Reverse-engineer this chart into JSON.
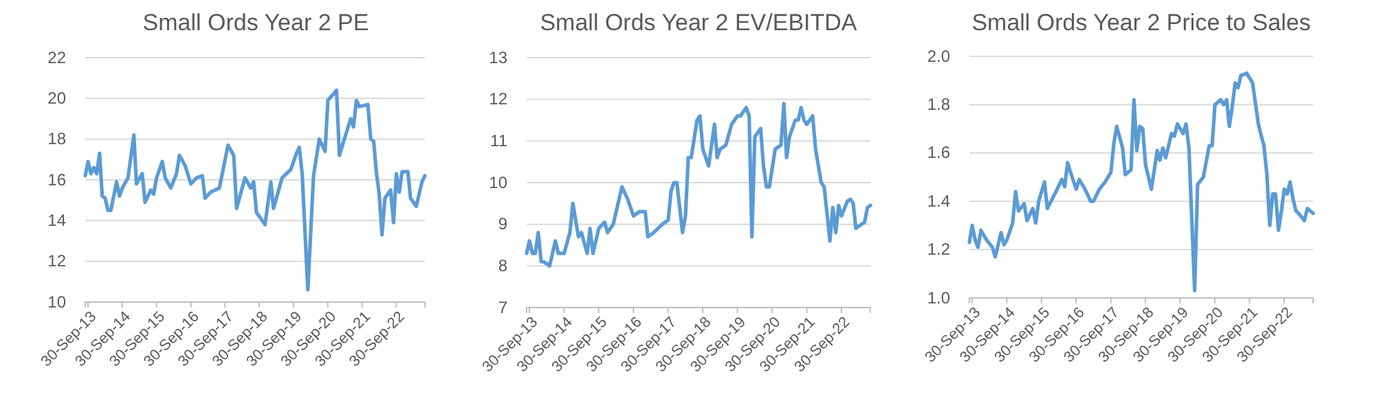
{
  "chart_data": [
    {
      "type": "line",
      "title": "Small Ords Year 2 PE",
      "color": "#5b9bd5",
      "grid": "y",
      "x": [
        "2013-09",
        "2013-10",
        "2013-11",
        "2013-12",
        "2014-01",
        "2014-02",
        "2014-03",
        "2014-04",
        "2014-05",
        "2014-06",
        "2014-08",
        "2014-09",
        "2014-10",
        "2014-12",
        "2015-02",
        "2015-03",
        "2015-05",
        "2015-06",
        "2015-08",
        "2015-09",
        "2015-10",
        "2015-12",
        "2016-01",
        "2016-03",
        "2016-05",
        "2016-06",
        "2016-08",
        "2016-10",
        "2016-12",
        "2017-02",
        "2017-03",
        "2017-05",
        "2017-08",
        "2017-11",
        "2018-01",
        "2018-02",
        "2018-05",
        "2018-07",
        "2018-08",
        "2018-09",
        "2018-12",
        "2019-02",
        "2019-03",
        "2019-04",
        "2019-06",
        "2019-09",
        "2019-11",
        "2019-12",
        "2020-01",
        "2020-03",
        "2020-05",
        "2020-07",
        "2020-09",
        "2020-10",
        "2021-01",
        "2021-02",
        "2021-04",
        "2021-06",
        "2021-07",
        "2021-08",
        "2021-09",
        "2021-12",
        "2022-01",
        "2022-02",
        "2022-03",
        "2022-04",
        "2022-05",
        "2022-06",
        "2022-08",
        "2022-09",
        "2022-10",
        "2022-11",
        "2022-12",
        "2023-02",
        "2023-03",
        "2023-05",
        "2023-07",
        "2023-08"
      ],
      "values": [
        16.2,
        16.9,
        16.3,
        16.6,
        16.3,
        17.3,
        15.2,
        15.1,
        14.5,
        14.5,
        15.9,
        15.2,
        15.6,
        16.1,
        18.2,
        15.8,
        16.3,
        14.9,
        15.5,
        15.3,
        16.1,
        16.9,
        16.1,
        15.6,
        16.3,
        17.2,
        16.7,
        15.8,
        16.1,
        16.2,
        15.1,
        15.4,
        15.6,
        17.7,
        17.2,
        14.6,
        16.1,
        15.6,
        15.9,
        14.4,
        13.8,
        15.9,
        14.6,
        15.1,
        16.1,
        16.5,
        17.3,
        17.6,
        16.3,
        10.6,
        16.2,
        18.0,
        17.4,
        19.9,
        20.4,
        17.2,
        18.1,
        19.0,
        18.6,
        19.9,
        19.6,
        19.7,
        18.0,
        17.9,
        16.4,
        15.3,
        13.3,
        15.1,
        15.5,
        13.9,
        16.3,
        15.4,
        16.4,
        16.4,
        15.1,
        14.7,
        15.9,
        16.2
      ],
      "xlim": [
        "2013-09",
        "2023-08"
      ],
      "xticks": [
        {
          "value": "2013-09-30",
          "label": "30-Sep-13"
        },
        {
          "value": "2014-09-30",
          "label": "30-Sep-14"
        },
        {
          "value": "2015-09-30",
          "label": "30-Sep-15"
        },
        {
          "value": "2016-09-30",
          "label": "30-Sep-16"
        },
        {
          "value": "2017-09-30",
          "label": "30-Sep-17"
        },
        {
          "value": "2018-09-30",
          "label": "30-Sep-18"
        },
        {
          "value": "2019-09-30",
          "label": "30-Sep-19"
        },
        {
          "value": "2020-09-30",
          "label": "30-Sep-20"
        },
        {
          "value": "2021-09-30",
          "label": "30-Sep-21"
        },
        {
          "value": "2022-09-30",
          "label": "30-Sep-22"
        }
      ],
      "ylim": [
        10,
        22
      ],
      "yticks": [
        10,
        12,
        14,
        16,
        18,
        20,
        22
      ]
    },
    {
      "type": "line",
      "title": "Small Ords Year 2 EV/EBITDA",
      "color": "#5b9bd5",
      "grid": "y",
      "x": [
        "2013-09",
        "2013-10",
        "2013-11",
        "2013-12",
        "2014-01",
        "2014-02",
        "2014-03",
        "2014-05",
        "2014-07",
        "2014-08",
        "2014-10",
        "2014-12",
        "2015-01",
        "2015-03",
        "2015-04",
        "2015-06",
        "2015-07",
        "2015-08",
        "2015-10",
        "2015-12",
        "2016-01",
        "2016-03",
        "2016-04",
        "2016-06",
        "2016-08",
        "2016-10",
        "2016-12",
        "2017-02",
        "2017-03",
        "2017-05",
        "2017-08",
        "2017-10",
        "2017-11",
        "2017-12",
        "2018-01",
        "2018-03",
        "2018-04",
        "2018-05",
        "2018-06",
        "2018-08",
        "2018-09",
        "2018-10",
        "2018-12",
        "2019-02",
        "2019-03",
        "2019-04",
        "2019-06",
        "2019-08",
        "2019-10",
        "2019-11",
        "2020-01",
        "2020-02",
        "2020-03",
        "2020-04",
        "2020-06",
        "2020-07",
        "2020-08",
        "2020-09",
        "2020-11",
        "2021-01",
        "2021-02",
        "2021-03",
        "2021-04",
        "2021-06",
        "2021-07",
        "2021-08",
        "2021-09",
        "2021-10",
        "2021-12",
        "2022-01",
        "2022-03",
        "2022-04",
        "2022-06",
        "2022-07",
        "2022-08",
        "2022-09",
        "2022-10",
        "2022-12",
        "2023-01",
        "2023-02",
        "2023-03",
        "2023-05",
        "2023-06",
        "2023-07",
        "2023-08"
      ],
      "values": [
        8.3,
        8.6,
        8.3,
        8.3,
        8.8,
        8.1,
        8.1,
        8.0,
        8.6,
        8.3,
        8.3,
        8.8,
        9.5,
        8.7,
        8.8,
        8.3,
        8.9,
        8.3,
        8.9,
        9.05,
        8.8,
        9.0,
        9.3,
        9.9,
        9.6,
        9.2,
        9.3,
        9.3,
        8.7,
        8.8,
        9.0,
        9.1,
        9.8,
        10.0,
        10.0,
        8.8,
        9.2,
        10.6,
        10.6,
        11.5,
        11.6,
        10.8,
        10.4,
        11.4,
        10.6,
        10.8,
        10.9,
        11.4,
        11.6,
        11.6,
        11.8,
        11.6,
        8.7,
        11.1,
        11.3,
        10.4,
        9.9,
        9.9,
        10.8,
        10.9,
        11.9,
        10.6,
        11.1,
        11.5,
        11.5,
        11.8,
        11.5,
        11.4,
        11.6,
        10.8,
        10.0,
        9.9,
        8.6,
        9.4,
        8.8,
        9.45,
        9.2,
        9.55,
        9.6,
        9.5,
        8.9,
        9.0,
        9.05,
        9.4,
        9.45
      ],
      "xlim": [
        "2013-09",
        "2023-08"
      ],
      "xticks": [
        {
          "value": "2013-09-30",
          "label": "30-Sep-13"
        },
        {
          "value": "2014-09-30",
          "label": "30-Sep-14"
        },
        {
          "value": "2015-09-30",
          "label": "30-Sep-15"
        },
        {
          "value": "2016-09-30",
          "label": "30-Sep-16"
        },
        {
          "value": "2017-09-30",
          "label": "30-Sep-17"
        },
        {
          "value": "2018-09-30",
          "label": "30-Sep-18"
        },
        {
          "value": "2019-09-30",
          "label": "30-Sep-19"
        },
        {
          "value": "2020-09-30",
          "label": "30-Sep-20"
        },
        {
          "value": "2021-09-30",
          "label": "30-Sep-21"
        },
        {
          "value": "2022-09-30",
          "label": "30-Sep-22"
        }
      ],
      "ylim": [
        7,
        13
      ],
      "yticks": [
        7,
        8,
        9,
        10,
        11,
        12,
        13
      ]
    },
    {
      "type": "line",
      "title": "Small Ords Year 2 Price to Sales",
      "color": "#5b9bd5",
      "grid": "y",
      "x": [
        "2013-09",
        "2013-10",
        "2013-11",
        "2013-12",
        "2014-01",
        "2014-03",
        "2014-05",
        "2014-06",
        "2014-08",
        "2014-09",
        "2014-10",
        "2014-12",
        "2015-01",
        "2015-02",
        "2015-04",
        "2015-05",
        "2015-07",
        "2015-08",
        "2015-09",
        "2015-11",
        "2015-12",
        "2016-03",
        "2016-05",
        "2016-06",
        "2016-07",
        "2016-08",
        "2016-10",
        "2016-11",
        "2017-01",
        "2017-03",
        "2017-04",
        "2017-06",
        "2017-08",
        "2017-10",
        "2017-11",
        "2017-12",
        "2018-02",
        "2018-03",
        "2018-05",
        "2018-06",
        "2018-07",
        "2018-08",
        "2018-09",
        "2018-10",
        "2018-12",
        "2019-02",
        "2019-03",
        "2019-04",
        "2019-05",
        "2019-07",
        "2019-08",
        "2019-09",
        "2019-11",
        "2019-12",
        "2020-01",
        "2020-03",
        "2020-04",
        "2020-06",
        "2020-08",
        "2020-09",
        "2020-10",
        "2020-12",
        "2021-01",
        "2021-02",
        "2021-03",
        "2021-04",
        "2021-05",
        "2021-06",
        "2021-07",
        "2021-09",
        "2021-10",
        "2021-11",
        "2022-01",
        "2022-02",
        "2022-03",
        "2022-04",
        "2022-05",
        "2022-06",
        "2022-07",
        "2022-08",
        "2022-09",
        "2022-10",
        "2022-11",
        "2022-12",
        "2023-01",
        "2023-02",
        "2023-03",
        "2023-05",
        "2023-06",
        "2023-08"
      ],
      "values": [
        1.23,
        1.3,
        1.24,
        1.21,
        1.28,
        1.24,
        1.21,
        1.17,
        1.27,
        1.22,
        1.24,
        1.31,
        1.44,
        1.36,
        1.39,
        1.32,
        1.37,
        1.31,
        1.4,
        1.48,
        1.37,
        1.44,
        1.49,
        1.46,
        1.56,
        1.52,
        1.45,
        1.49,
        1.45,
        1.4,
        1.4,
        1.45,
        1.48,
        1.52,
        1.64,
        1.71,
        1.62,
        1.51,
        1.53,
        1.82,
        1.61,
        1.71,
        1.7,
        1.55,
        1.45,
        1.61,
        1.57,
        1.62,
        1.58,
        1.68,
        1.67,
        1.72,
        1.68,
        1.72,
        1.62,
        1.03,
        1.47,
        1.5,
        1.63,
        1.63,
        1.8,
        1.82,
        1.8,
        1.82,
        1.71,
        1.79,
        1.89,
        1.87,
        1.92,
        1.93,
        1.91,
        1.89,
        1.72,
        1.67,
        1.63,
        1.51,
        1.3,
        1.43,
        1.43,
        1.28,
        1.36,
        1.45,
        1.43,
        1.48,
        1.41,
        1.36,
        1.35,
        1.32,
        1.37,
        1.35
      ],
      "xlim": [
        "2013-09",
        "2023-08"
      ],
      "xticks": [
        {
          "value": "2013-09-30",
          "label": "30-Sep-13"
        },
        {
          "value": "2014-09-30",
          "label": "30-Sep-14"
        },
        {
          "value": "2015-09-30",
          "label": "30-Sep-15"
        },
        {
          "value": "2016-09-30",
          "label": "30-Sep-16"
        },
        {
          "value": "2017-09-30",
          "label": "30-Sep-17"
        },
        {
          "value": "2018-09-30",
          "label": "30-Sep-18"
        },
        {
          "value": "2019-09-30",
          "label": "30-Sep-19"
        },
        {
          "value": "2020-09-30",
          "label": "30-Sep-20"
        },
        {
          "value": "2021-09-30",
          "label": "30-Sep-21"
        },
        {
          "value": "2022-09-30",
          "label": "30-Sep-22"
        }
      ],
      "ylim": [
        1.0,
        2.0
      ],
      "yticks": [
        {
          "value": 1.0,
          "label": "1.0"
        },
        {
          "value": 1.2,
          "label": "1.2"
        },
        {
          "value": 1.4,
          "label": "1.4"
        },
        {
          "value": 1.6,
          "label": "1.6"
        },
        {
          "value": 1.8,
          "label": "1.8"
        },
        {
          "value": 2.0,
          "label": "2.0"
        }
      ]
    }
  ]
}
